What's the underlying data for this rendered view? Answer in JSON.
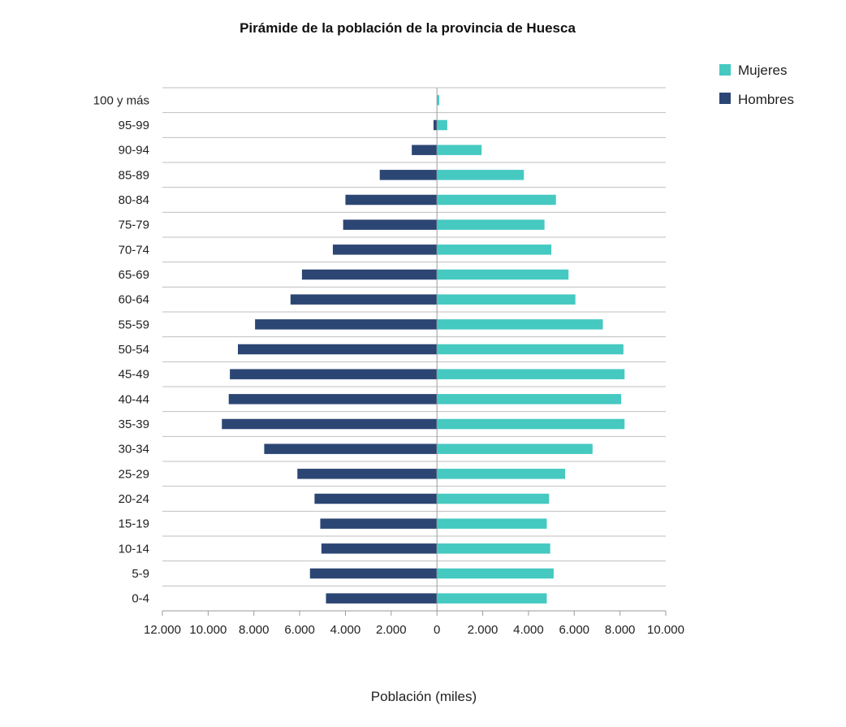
{
  "chart_data": {
    "type": "bar",
    "orientation": "horizontal",
    "title": "Pirámide de la población de la provincia de Huesca",
    "xlabel": "Población (miles)",
    "ylabel": "",
    "categories": [
      "100 y más",
      "95-99",
      "90-94",
      "85-89",
      "80-84",
      "75-79",
      "70-74",
      "65-69",
      "60-64",
      "55-59",
      "50-54",
      "45-49",
      "40-44",
      "35-39",
      "30-34",
      "25-29",
      "20-24",
      "15-19",
      "10-14",
      "5-9",
      "0-4"
    ],
    "series": [
      {
        "name": "Mujeres",
        "color": "#45c9c1",
        "side": "right",
        "values": [
          100,
          450,
          1950,
          3800,
          5200,
          4700,
          5000,
          5750,
          6050,
          7250,
          8150,
          8200,
          8050,
          8200,
          6800,
          5600,
          4900,
          4800,
          4950,
          5100,
          4800
        ]
      },
      {
        "name": "Hombres",
        "color": "#2c4674",
        "side": "left",
        "values": [
          0,
          150,
          1100,
          2500,
          4000,
          4100,
          4550,
          5900,
          6400,
          7950,
          8700,
          9050,
          9100,
          9400,
          7550,
          6100,
          5350,
          5100,
          5050,
          5550,
          4850
        ]
      }
    ],
    "xlim": [
      -12000,
      10000
    ],
    "x_tick_values": [
      -12000,
      -10000,
      -8000,
      -6000,
      -4000,
      -2000,
      0,
      2000,
      4000,
      6000,
      8000,
      10000
    ],
    "x_tick_labels": [
      "12.000",
      "10.000",
      "8.000",
      "6.000",
      "4.000",
      "2.000",
      "0",
      "2.000",
      "4.000",
      "6.000",
      "8.000",
      "10.000"
    ],
    "grid": "horizontal",
    "legend_position": "top-right"
  }
}
